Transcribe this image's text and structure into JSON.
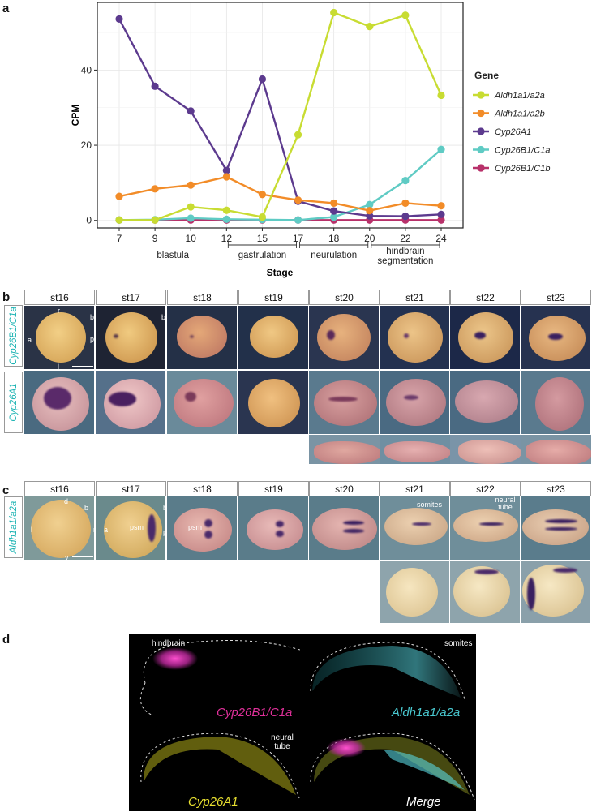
{
  "panels": {
    "a": "a",
    "b": "b",
    "c": "c",
    "d": "d"
  },
  "chart_data": {
    "type": "line",
    "x": [
      7,
      9,
      10,
      12,
      15,
      17,
      18,
      20,
      22,
      24
    ],
    "categories": [
      "7",
      "9",
      "10",
      "12",
      "15",
      "17",
      "18",
      "20",
      "22",
      "24"
    ],
    "series": [
      {
        "name": "Aldh1a1/a2a",
        "color": "#c8dc32",
        "values": [
          0.1,
          0.1,
          3.6,
          2.7,
          0.9,
          22.8,
          55.3,
          51.6,
          54.6,
          33.3
        ]
      },
      {
        "name": "Aldh1a1/a2b",
        "color": "#f28c28",
        "values": [
          6.4,
          8.4,
          9.4,
          11.6,
          6.9,
          5.4,
          4.6,
          2.6,
          4.6,
          3.9
        ]
      },
      {
        "name": "Cyp26A1",
        "color": "#5c3a8e",
        "values": [
          53.6,
          35.7,
          29.1,
          13.3,
          37.6,
          5.1,
          2.5,
          1.2,
          1.1,
          1.6
        ]
      },
      {
        "name": "Cyp26B1/C1a",
        "color": "#5fcbc4",
        "values": [
          0.1,
          0.2,
          0.6,
          0.3,
          0.2,
          0.1,
          0.9,
          4.2,
          10.6,
          18.9
        ]
      },
      {
        "name": "Cyp26B1/C1b",
        "color": "#b8316a",
        "values": [
          0.1,
          0.1,
          0.1,
          0.1,
          0.1,
          0.1,
          0.1,
          0.1,
          0.1,
          0.1
        ]
      }
    ],
    "yticks": [
      "0",
      "20",
      "40"
    ],
    "ylim": [
      -2,
      58
    ],
    "xlabel": "Stage",
    "ylabel": "CPM",
    "legend_title": "Gene",
    "legend_position": "right",
    "phases": [
      {
        "label": "blastula",
        "from": 7,
        "to": 12,
        "bracket": false
      },
      {
        "label": "gastrulation",
        "from": 12,
        "to": 17,
        "bracket": true
      },
      {
        "label": "neurulation",
        "from": 17,
        "to": 20,
        "bracket": true
      },
      {
        "label": "hindbrain segmentation",
        "from": 20,
        "to": 24,
        "bracket": true
      }
    ]
  },
  "panel_b": {
    "stages": [
      "st16",
      "st17",
      "st18",
      "st19",
      "st20",
      "st21",
      "st22",
      "st23"
    ],
    "row_labels": [
      "Cyp26B1/C1a",
      "Cyp26A1"
    ],
    "axis_marks": [
      "r",
      "b",
      "a",
      "p",
      "l"
    ]
  },
  "panel_c": {
    "stages": [
      "st16",
      "st17",
      "st18",
      "st19",
      "st20",
      "st21",
      "st22",
      "st23"
    ],
    "row_label": "Aldh1a1/a2a",
    "axis_marks": [
      "d",
      "b",
      "l",
      "r",
      "v",
      "a",
      "p"
    ],
    "annotations": {
      "psm": "psm",
      "somites": "somites",
      "neural_tube": "neural tube"
    }
  },
  "panel_d": {
    "labels": [
      "Cyp26B1/C1a",
      "Aldh1a1/a2a",
      "Cyp26A1",
      "Merge"
    ],
    "label_colors": [
      "#e0309a",
      "#49c8d0",
      "#e8e030",
      "#ffffff"
    ],
    "annotations": {
      "hindbrain": "hindbrain",
      "somites": "somites",
      "neural_tube": "neural tube"
    }
  }
}
